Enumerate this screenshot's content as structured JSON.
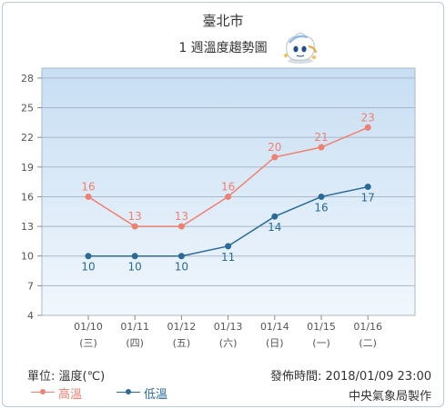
{
  "header": {
    "city": "臺北市",
    "subtitle": "1 週溫度趨勢圖"
  },
  "footer": {
    "unit": "單位: 溫度(℃)",
    "publish_time": "發佈時間: 2018/01/09 23:00",
    "issuer": "中央氣象局製作"
  },
  "colors": {
    "high": "#f08070",
    "low": "#2a6a98",
    "plot_bg_top": "#c7def3",
    "plot_bg_bottom": "#f1f7fd",
    "grid": "#a8b8c8"
  },
  "chart_data": {
    "type": "line",
    "categories": [
      "01/10",
      "01/11",
      "01/12",
      "01/13",
      "01/14",
      "01/15",
      "01/16"
    ],
    "weekdays": [
      "(三)",
      "(四)",
      "(五)",
      "(六)",
      "(日)",
      "(一)",
      "(二)"
    ],
    "yticks": [
      4,
      7,
      10,
      13,
      16,
      19,
      22,
      25,
      28
    ],
    "ylim": [
      4,
      29
    ],
    "grid": true,
    "legend": "bottom-left",
    "series": [
      {
        "name": "高溫",
        "color": "#f08070",
        "values": [
          16,
          13,
          13,
          16,
          20,
          21,
          23
        ]
      },
      {
        "name": "低溫",
        "color": "#2a6a98",
        "values": [
          10,
          10,
          10,
          11,
          14,
          16,
          17
        ]
      }
    ]
  }
}
